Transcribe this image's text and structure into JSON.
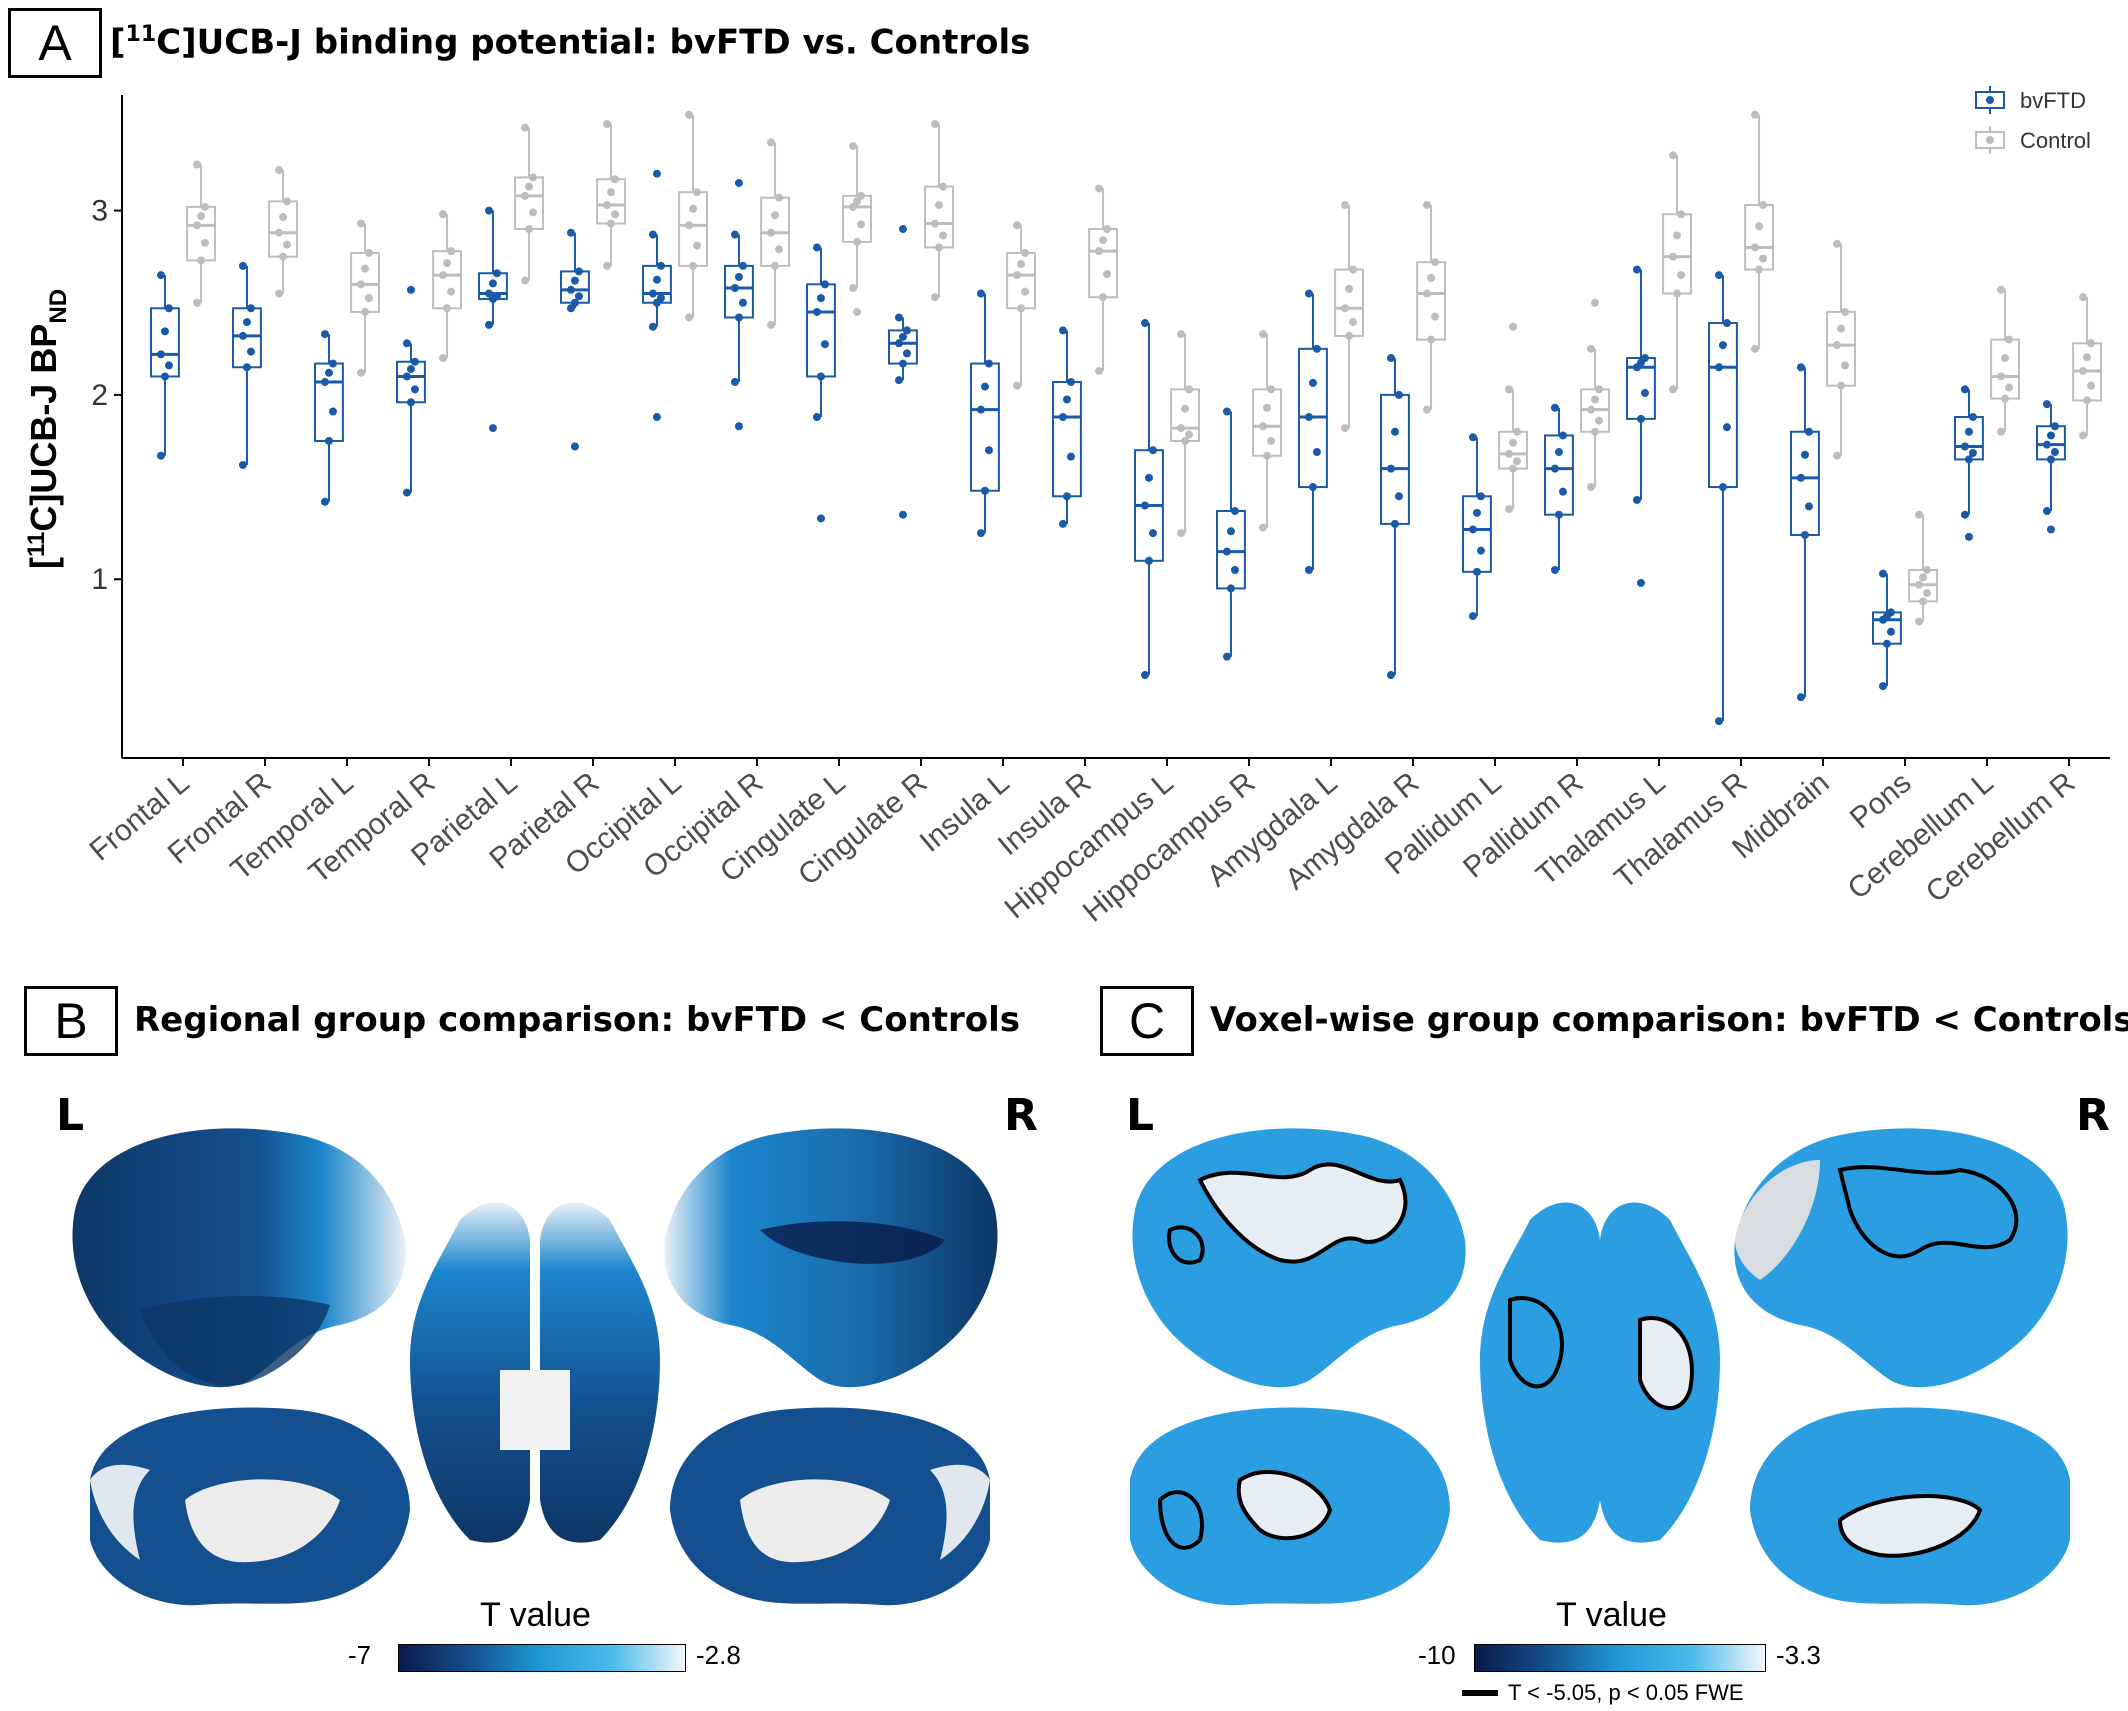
{
  "panel_a": {
    "letter": "A",
    "title_prefix": "[",
    "title_sup": "11",
    "title_rest": "C]UCB-J binding potential: bvFTD vs. Controls"
  },
  "panel_b": {
    "letter": "B",
    "title": "Regional group comparison: bvFTD < Controls",
    "left_letter": "L",
    "right_letter": "R",
    "colorbar_label": "T value",
    "colorbar_min": "-7",
    "colorbar_max": "-2.8"
  },
  "panel_c": {
    "letter": "C",
    "title": "Voxel-wise group comparison: bvFTD < Controls",
    "left_letter": "L",
    "right_letter": "R",
    "colorbar_label": "T value",
    "colorbar_min": "-10",
    "colorbar_max": "-3.3",
    "contour_legend": "T < -5.05, p < 0.05 FWE"
  },
  "colors": {
    "bvftd": "#1a5aa8",
    "control": "#bdbdbd",
    "cb_dark": "#0a1a4a",
    "cb_mid": "#1f9ad8",
    "cb_light": "#f4f8fb"
  },
  "chart_data": {
    "type": "box",
    "ylabel_main": "[",
    "ylabel_sup": "11",
    "ylabel_mid": "C]UCB-J BP",
    "ylabel_sub": "ND",
    "ylim": [
      0.03,
      3.6
    ],
    "yticks": [
      "1",
      "2",
      "3"
    ],
    "ytick_values": [
      1,
      2,
      3
    ],
    "legend": [
      "bvFTD",
      "Control"
    ],
    "legend_position": "top-right",
    "grid": false,
    "categories": [
      "Frontal L",
      "Frontal R",
      "Temporal L",
      "Temporal R",
      "Parietal L",
      "Parietal R",
      "Occipital L",
      "Occipital R",
      "Cingulate L",
      "Cingulate R",
      "Insula L",
      "Insula R",
      "Hippocampus L",
      "Hippocampus R",
      "Amygdala L",
      "Amygdala R",
      "Pallidum L",
      "Pallidum R",
      "Thalamus L",
      "Thalamus R",
      "Midbrain",
      "Pons",
      "Cerebellum L",
      "Cerebellum R"
    ],
    "series": [
      {
        "name": "bvFTD",
        "stats": [
          [
            1.67,
            2.1,
            2.22,
            2.47,
            2.65
          ],
          [
            1.62,
            2.15,
            2.32,
            2.47,
            2.7
          ],
          [
            1.42,
            1.75,
            2.07,
            2.17,
            2.33
          ],
          [
            1.47,
            1.96,
            2.1,
            2.18,
            2.28
          ],
          [
            2.38,
            2.52,
            2.55,
            2.66,
            3.0
          ],
          [
            2.47,
            2.5,
            2.57,
            2.67,
            2.88
          ],
          [
            2.37,
            2.5,
            2.55,
            2.7,
            2.87
          ],
          [
            2.07,
            2.42,
            2.58,
            2.7,
            2.87
          ],
          [
            1.88,
            2.1,
            2.45,
            2.6,
            2.8
          ],
          [
            2.08,
            2.17,
            2.28,
            2.35,
            2.42
          ],
          [
            1.25,
            1.48,
            1.92,
            2.17,
            2.55
          ],
          [
            1.3,
            1.45,
            1.88,
            2.07,
            2.35
          ],
          [
            0.48,
            1.1,
            1.4,
            1.7,
            2.39
          ],
          [
            0.58,
            0.95,
            1.15,
            1.37,
            1.91
          ],
          [
            1.05,
            1.5,
            1.88,
            2.25,
            2.55
          ],
          [
            0.48,
            1.3,
            1.6,
            2.0,
            2.2
          ],
          [
            0.8,
            1.04,
            1.27,
            1.45,
            1.77
          ],
          [
            1.05,
            1.35,
            1.6,
            1.78,
            1.93
          ],
          [
            1.43,
            1.87,
            2.15,
            2.2,
            2.68
          ],
          [
            0.23,
            1.5,
            2.15,
            2.39,
            2.65
          ],
          [
            0.36,
            1.24,
            1.55,
            1.8,
            2.15
          ],
          [
            0.42,
            0.65,
            0.78,
            0.82,
            1.03
          ],
          [
            1.35,
            1.65,
            1.72,
            1.88,
            2.03
          ],
          [
            1.37,
            1.65,
            1.73,
            1.83,
            1.95
          ]
        ],
        "outliers": [
          [],
          [],
          [],
          [
            2.57
          ],
          [
            1.82
          ],
          [
            1.72
          ],
          [
            1.88,
            3.2
          ],
          [
            1.83,
            3.15
          ],
          [
            1.33
          ],
          [
            1.35,
            2.9
          ],
          [],
          [],
          [],
          [],
          [],
          [],
          [],
          [],
          [
            0.98
          ],
          [],
          [],
          [],
          [
            1.23
          ],
          [
            1.27
          ]
        ]
      },
      {
        "name": "Control",
        "stats": [
          [
            2.5,
            2.73,
            2.92,
            3.02,
            3.25
          ],
          [
            2.55,
            2.75,
            2.88,
            3.05,
            3.22
          ],
          [
            2.12,
            2.45,
            2.6,
            2.77,
            2.93
          ],
          [
            2.2,
            2.47,
            2.65,
            2.78,
            2.98
          ],
          [
            2.62,
            2.9,
            3.08,
            3.18,
            3.45
          ],
          [
            2.7,
            2.93,
            3.03,
            3.17,
            3.47
          ],
          [
            2.42,
            2.7,
            2.92,
            3.1,
            3.52
          ],
          [
            2.38,
            2.7,
            2.88,
            3.07,
            3.37
          ],
          [
            2.58,
            2.83,
            3.02,
            3.08,
            3.35
          ],
          [
            2.53,
            2.8,
            2.93,
            3.13,
            3.47
          ],
          [
            2.05,
            2.47,
            2.65,
            2.77,
            2.92
          ],
          [
            2.13,
            2.53,
            2.78,
            2.9,
            3.12
          ],
          [
            1.25,
            1.75,
            1.82,
            2.03,
            2.33
          ],
          [
            1.28,
            1.67,
            1.83,
            2.03,
            2.33
          ],
          [
            1.82,
            2.32,
            2.47,
            2.68,
            3.03
          ],
          [
            1.92,
            2.3,
            2.55,
            2.72,
            3.03
          ],
          [
            1.38,
            1.6,
            1.68,
            1.8,
            2.03
          ],
          [
            1.5,
            1.8,
            1.92,
            2.03,
            2.25
          ],
          [
            2.03,
            2.55,
            2.75,
            2.98,
            3.3
          ],
          [
            2.25,
            2.68,
            2.8,
            3.03,
            3.52
          ],
          [
            1.67,
            2.05,
            2.27,
            2.45,
            2.82
          ],
          [
            0.77,
            0.88,
            0.97,
            1.05,
            1.35
          ],
          [
            1.8,
            1.98,
            2.1,
            2.3,
            2.57
          ],
          [
            1.78,
            1.97,
            2.13,
            2.28,
            2.53
          ]
        ],
        "outliers": [
          [],
          [],
          [],
          [],
          [],
          [],
          [],
          [],
          [
            2.45
          ],
          [],
          [],
          [],
          [],
          [],
          [],
          [],
          [
            2.37
          ],
          [
            2.5
          ],
          [],
          [],
          [],
          [],
          [],
          []
        ]
      }
    ]
  }
}
